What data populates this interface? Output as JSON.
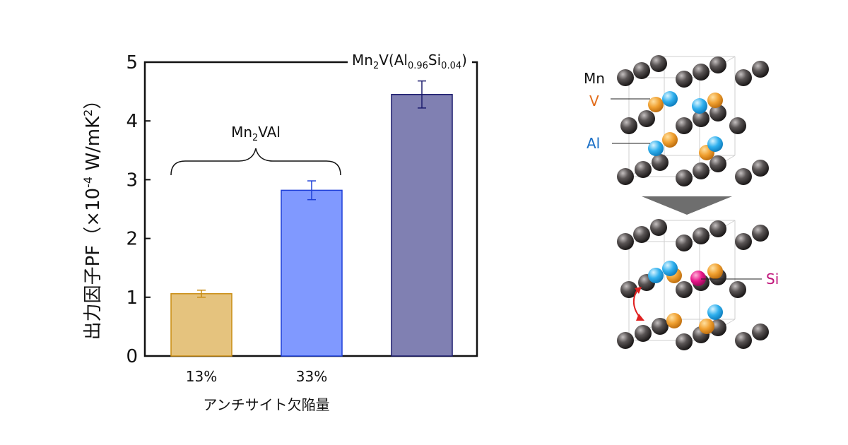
{
  "chart_data": {
    "type": "bar",
    "categories": [
      "13%",
      "33%",
      ""
    ],
    "values": [
      1.06,
      2.82,
      4.45
    ],
    "errors": [
      0.06,
      0.16,
      0.23
    ],
    "colors": [
      "#e5c37e",
      "#8099ff",
      "#8080b2"
    ],
    "edge_colors": [
      "#c98d12",
      "#1e3fd8",
      "#1c1c6e"
    ],
    "ylabel_main": "出力因子PF（×10",
    "ylabel_exp": "-4",
    "ylabel_unit": " W/mK",
    "ylabel_unit_exp": "2",
    "ylabel_close": "）",
    "xlabel": "アンチサイト欠陥量",
    "ylim": [
      0,
      5
    ],
    "yticks": [
      "0",
      "1",
      "2",
      "3",
      "4",
      "5"
    ],
    "grid": false,
    "annotations": {
      "group_label": {
        "base": "Mn",
        "sub": "2",
        "rest": "VAl"
      },
      "top_label": {
        "base": "Mn",
        "sub1": "2",
        "mid": "V(Al",
        "sub2": "0.96",
        "mid2": "Si",
        "sub3": "0.04",
        "end": ")"
      }
    }
  },
  "figure": {
    "labels": {
      "mn": "Mn",
      "v": "V",
      "al": "Al",
      "si": "Si"
    },
    "colors": {
      "mn": "#4a4545",
      "v": "#f0a030",
      "al": "#30b0ee",
      "si": "#e8178a",
      "v_label": "#e26c1a",
      "al_label": "#1a6fc6",
      "si_label": "#c0147a",
      "arrow": "#888888",
      "exchange": "#e02020"
    }
  }
}
